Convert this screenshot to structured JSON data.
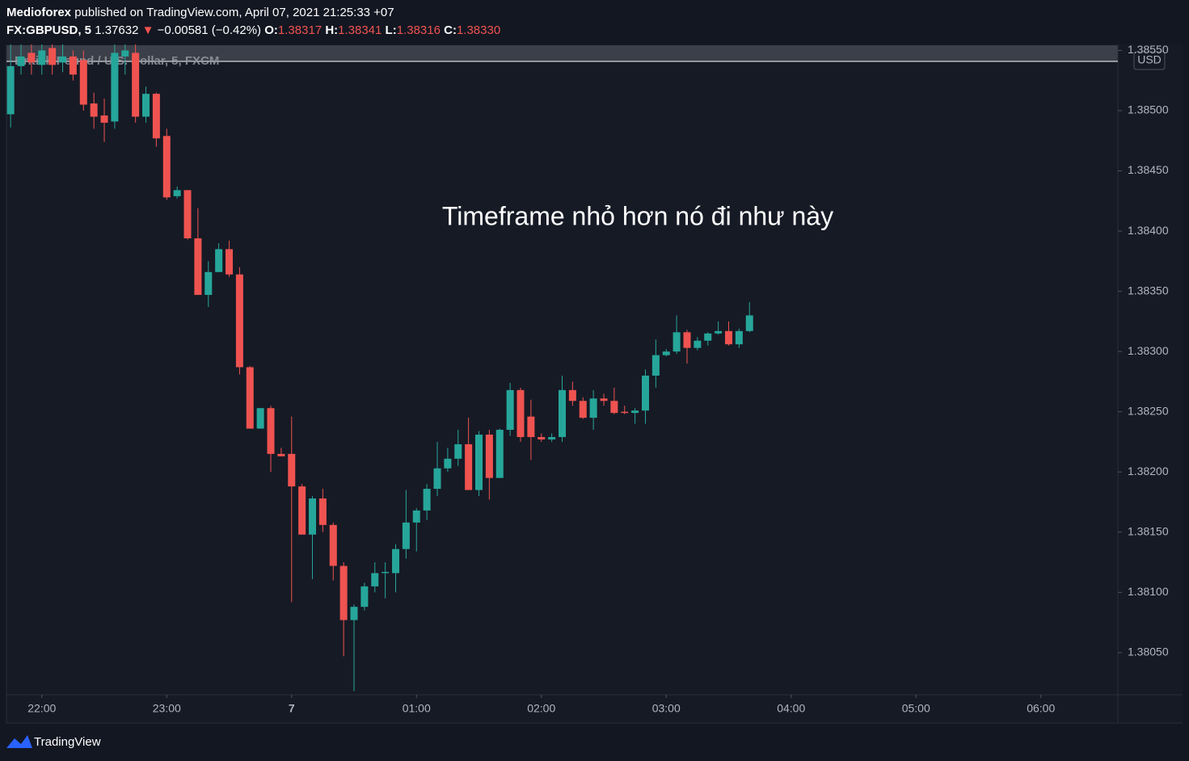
{
  "header": {
    "publisher": "Medioforex",
    "published": "published on TradingView.com, April 07, 2021 21:25:33 +07",
    "symbol": "FX:GBPUSD, 5",
    "last": "1.37632",
    "arrow": "▼",
    "change": "−0.00581 (−0.42%)",
    "ohlc": [
      {
        "label": "O:",
        "value": "1.38317"
      },
      {
        "label": "H:",
        "value": "1.38341"
      },
      {
        "label": "L:",
        "value": "1.38316"
      },
      {
        "label": "C:",
        "value": "1.38330"
      }
    ]
  },
  "footer": {
    "brand": "TradingView"
  },
  "chart_data": {
    "type": "candlestick",
    "title": "British Pound / U.S. Dollar, 5, FXCM",
    "annotation": "Timeframe nhỏ hơn nó đi như này",
    "currency": "USD",
    "up_color": "#26a69a",
    "down_color": "#ef5350",
    "grid": false,
    "x": [
      "21:45",
      "21:50",
      "21:55",
      "22:00",
      "22:05",
      "22:10",
      "22:15",
      "22:20",
      "22:25",
      "22:30",
      "22:35",
      "22:40",
      "22:45",
      "22:50",
      "22:55",
      "23:00",
      "23:05",
      "23:10",
      "23:15",
      "23:20",
      "23:25",
      "23:30",
      "23:35",
      "23:40",
      "23:45",
      "23:50",
      "23:55",
      "00:00",
      "00:05",
      "00:10",
      "00:15",
      "00:20",
      "00:25",
      "00:30",
      "00:35",
      "00:40",
      "00:45",
      "00:50",
      "00:55",
      "01:00",
      "01:05",
      "01:10",
      "01:15",
      "01:20",
      "01:25",
      "01:30",
      "01:35",
      "01:40",
      "01:45",
      "01:50",
      "01:55",
      "02:00",
      "02:05",
      "02:10",
      "02:15",
      "02:20",
      "02:25",
      "02:30",
      "02:35",
      "02:40",
      "02:45",
      "02:50",
      "02:55",
      "03:00",
      "03:05",
      "03:10",
      "03:15",
      "03:20",
      "03:25",
      "03:30",
      "03:35",
      "03:40"
    ],
    "open": [
      1.38497,
      1.38537,
      1.38548,
      1.38538,
      1.38552,
      1.3854,
      1.38545,
      1.38542,
      1.38506,
      1.38496,
      1.38491,
      1.38545,
      1.38548,
      1.38495,
      1.38514,
      1.38479,
      1.38429,
      1.38434,
      1.38394,
      1.38347,
      1.38366,
      1.38385,
      1.38364,
      1.38287,
      1.38236,
      1.38253,
      1.38215,
      1.38215,
      1.38188,
      1.38148,
      1.38178,
      1.38156,
      1.38122,
      1.38077,
      1.38088,
      1.38105,
      1.38116,
      1.38116,
      1.38136,
      1.38158,
      1.38168,
      1.38186,
      1.38203,
      1.38211,
      1.38223,
      1.38185,
      1.38231,
      1.38195,
      1.38235,
      1.38268,
      1.38246,
      1.38229,
      1.38227,
      1.38229,
      1.38268,
      1.38259,
      1.38245,
      1.38261,
      1.38259,
      1.3825,
      1.38249,
      1.38251,
      1.3828,
      1.38297,
      1.383,
      1.38316,
      1.38303,
      1.38309,
      1.38315,
      1.38317,
      1.38306,
      1.38317
    ],
    "high": [
      1.38555,
      1.38555,
      1.38555,
      1.38555,
      1.38555,
      1.38555,
      1.3855,
      1.3855,
      1.38515,
      1.3851,
      1.38555,
      1.38555,
      1.38555,
      1.3852,
      1.38515,
      1.38485,
      1.38437,
      1.38434,
      1.38419,
      1.38375,
      1.3839,
      1.38392,
      1.3837,
      1.38288,
      1.38253,
      1.38255,
      1.3822,
      1.38246,
      1.3819,
      1.3818,
      1.38186,
      1.38158,
      1.38125,
      1.3809,
      1.38108,
      1.38125,
      1.38125,
      1.3814,
      1.38185,
      1.3817,
      1.3819,
      1.38225,
      1.3822,
      1.38235,
      1.38245,
      1.38234,
      1.38235,
      1.38236,
      1.38274,
      1.3827,
      1.3826,
      1.38232,
      1.38232,
      1.3828,
      1.38275,
      1.38262,
      1.38268,
      1.38265,
      1.3827,
      1.38255,
      1.38253,
      1.38285,
      1.3831,
      1.38302,
      1.3833,
      1.38318,
      1.38312,
      1.38316,
      1.38325,
      1.38325,
      1.38319,
      1.38341
    ],
    "low": [
      1.38486,
      1.3853,
      1.3853,
      1.3853,
      1.3853,
      1.38532,
      1.38525,
      1.385,
      1.38485,
      1.38474,
      1.38485,
      1.3853,
      1.3849,
      1.3849,
      1.3847,
      1.38426,
      1.38427,
      1.38393,
      1.38347,
      1.38337,
      1.38366,
      1.38362,
      1.38281,
      1.38236,
      1.38236,
      1.382,
      1.38213,
      1.38092,
      1.38148,
      1.38111,
      1.3815,
      1.3811,
      1.38047,
      1.38018,
      1.38085,
      1.381,
      1.38095,
      1.381,
      1.38128,
      1.38134,
      1.3816,
      1.3818,
      1.382,
      1.38205,
      1.38185,
      1.3818,
      1.38177,
      1.38195,
      1.3823,
      1.38225,
      1.3821,
      1.38225,
      1.38225,
      1.38225,
      1.38255,
      1.38244,
      1.38235,
      1.38255,
      1.38248,
      1.38248,
      1.3824,
      1.3824,
      1.3827,
      1.38296,
      1.38298,
      1.3829,
      1.38301,
      1.38305,
      1.38314,
      1.38305,
      1.38303,
      1.38316
    ],
    "close": [
      1.38537,
      1.38545,
      1.3854,
      1.3855,
      1.38538,
      1.38545,
      1.3853,
      1.38505,
      1.38495,
      1.3849,
      1.38548,
      1.3855,
      1.38495,
      1.38514,
      1.38477,
      1.38428,
      1.38434,
      1.38394,
      1.38347,
      1.38366,
      1.38385,
      1.38364,
      1.38287,
      1.38236,
      1.38253,
      1.38215,
      1.38213,
      1.38188,
      1.38148,
      1.38178,
      1.38156,
      1.38122,
      1.38077,
      1.38088,
      1.38105,
      1.38116,
      1.38117,
      1.38136,
      1.38158,
      1.38168,
      1.38186,
      1.38203,
      1.38211,
      1.38223,
      1.38185,
      1.38231,
      1.38195,
      1.38235,
      1.38268,
      1.38229,
      1.38229,
      1.38227,
      1.38229,
      1.38268,
      1.38259,
      1.38245,
      1.38261,
      1.38259,
      1.38249,
      1.38249,
      1.38251,
      1.3828,
      1.38297,
      1.383,
      1.38316,
      1.38303,
      1.38309,
      1.38315,
      1.38317,
      1.38306,
      1.38317,
      1.3833
    ],
    "xlim": [
      "21:43",
      "06:37"
    ],
    "xticks": [
      "22:00",
      "23:00",
      {
        "value": "00:00",
        "label": "7"
      },
      "01:00",
      "02:00",
      "03:00",
      "04:00",
      "05:00",
      "06:00"
    ],
    "ylim": [
      1.38015,
      1.38555
    ],
    "yticks": [
      {
        "value": 1.3805,
        "label": "1.38050"
      },
      {
        "value": 1.381,
        "label": "1.38100"
      },
      {
        "value": 1.3815,
        "label": "1.38150"
      },
      {
        "value": 1.382,
        "label": "1.38200"
      },
      {
        "value": 1.3825,
        "label": "1.38250"
      },
      {
        "value": 1.383,
        "label": "1.38300"
      },
      {
        "value": 1.3835,
        "label": "1.38350"
      },
      {
        "value": 1.384,
        "label": "1.38400"
      },
      {
        "value": 1.3845,
        "label": "1.38450"
      },
      {
        "value": 1.385,
        "label": "1.38500"
      },
      {
        "value": 1.3855,
        "label": "1.38550"
      }
    ]
  }
}
